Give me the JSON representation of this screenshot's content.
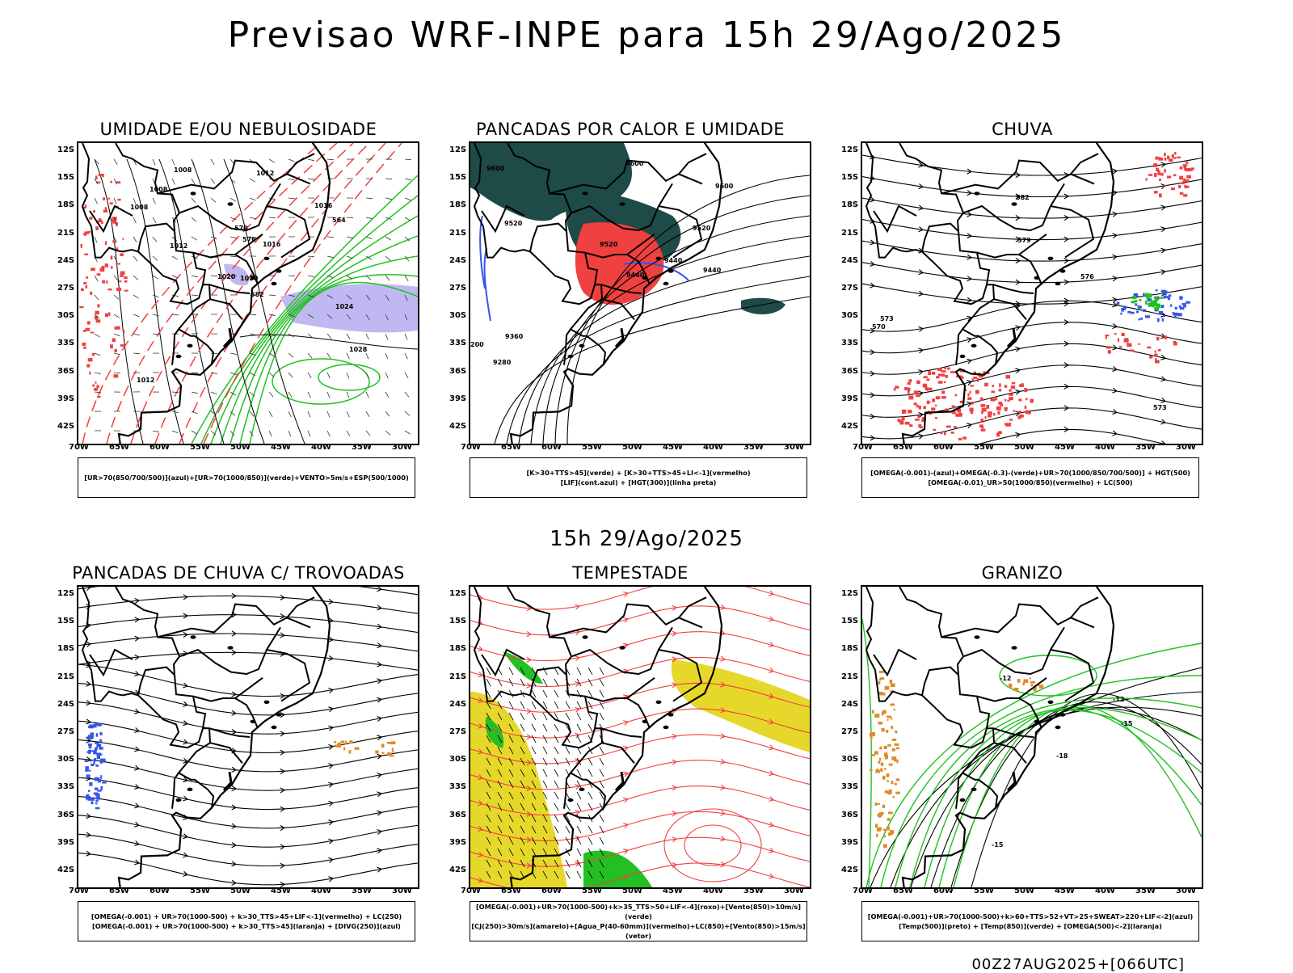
{
  "title": "Previsao WRF-INPE  para 15h 29/Ago/2025",
  "subtitle": "15h 29/Ago/2025",
  "footer": "00Z27AUG2025+[066UTC]",
  "axes": {
    "y_labels": [
      "12S",
      "15S",
      "18S",
      "21S",
      "24S",
      "27S",
      "30S",
      "33S",
      "36S",
      "39S",
      "42S"
    ],
    "x_labels": [
      "70W",
      "65W",
      "60W",
      "55W",
      "50W",
      "45W",
      "40W",
      "35W",
      "30W"
    ]
  },
  "panels": [
    {
      "title": "UMIDADE E/OU NEBULOSIDADE",
      "legend": [
        "[UR>70(850/700/500)](azul)+[UR>70(1000/850)](verde)+VENTO>5m/s+ESP(500/1000)"
      ],
      "contour_labels": [
        "1008",
        "1008",
        "1008",
        "1012",
        "1016",
        "1016",
        "1020",
        "1024",
        "1028",
        "1012",
        "1020",
        "1012",
        "564",
        "570",
        "576",
        "582"
      ]
    },
    {
      "title": "PANCADAS POR CALOR E UMIDADE",
      "legend": [
        "[K>30+TTS>45](verde) + [K>30+TTS>45+LI<-1](vermelho)",
        "[LIF](cont.azul) + [HGT(300)](linha preta)"
      ],
      "contour_labels": [
        "9600",
        "9600",
        "9600",
        "9520",
        "9520",
        "9520",
        "9440",
        "9440",
        "9440",
        "9360",
        "9280",
        "200"
      ]
    },
    {
      "title": "CHUVA",
      "legend": [
        "[OMEGA(-0.001)-(azul)+OMEGA(-0.3)-(verde)+UR>70(1000/850/700/500)] + HGT(500)",
        "[OMEGA(-0.01)_UR>50(1000/850)(vermelho) + LC(500)"
      ],
      "contour_labels": [
        "582",
        "579",
        "576",
        "573",
        "570",
        "573"
      ]
    },
    {
      "title": "PANCADAS DE CHUVA C/ TROVOADAS",
      "legend": [
        "[OMEGA(-0.001) + UR>70(1000-500) + k>30_TTS>45+LIF<-1](vermelho) + LC(250)",
        "[OMEGA(-0.001) + UR>70(1000-500) + k>30_TTS>45](laranja) + [DIVG(250)](azul)"
      ],
      "contour_labels": []
    },
    {
      "title": "TEMPESTADE",
      "legend": [
        "[OMEGA(-0.001)+UR>70(1000-500)+k>35_TTS>50+LIF<-4](roxo)+[Vento(850)>10m/s](verde)",
        "[CJ(250)>30m/s](amarelo)+[Agua_P(40-60mm)](vermelho)+LC(850)+[Vento(850)>15m/s](vetor)"
      ],
      "contour_labels": []
    },
    {
      "title": "GRANIZO",
      "legend": [
        "[OMEGA(-0.001)+UR>70(1000-500)+k>60+TTS>52+VT>25+SWEAT>220+LIF<-2](azul)",
        "[Temp(500)](preto) + [Temp(850)](verde) + [OMEGA(500)<-2](laranja)"
      ],
      "contour_labels": [
        "-12",
        "-12",
        "-15",
        "-18",
        "-15"
      ]
    }
  ],
  "colors": {
    "coast": "#000000",
    "red": "#f04040",
    "green": "#22c022",
    "blue": "#3355ee",
    "lavender": "#b0a8ee",
    "darkteal": "#1e4a48",
    "yellow": "#e6d82a",
    "orange": "#e08a2a"
  }
}
